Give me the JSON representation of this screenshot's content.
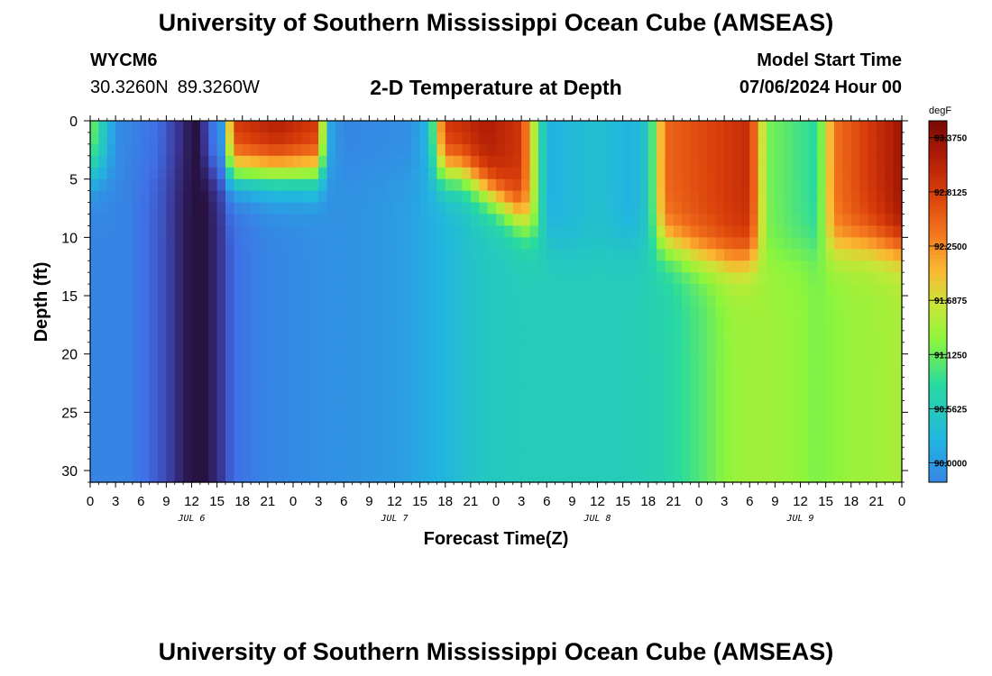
{
  "header": {
    "title": "University of Southern Mississippi Ocean Cube (AMSEAS)",
    "station_id": "WYCM6",
    "lat": "30.3260N",
    "lon": "89.3260W",
    "subtitle": "2-D Temperature at Depth",
    "model_start_label": "Model Start Time",
    "model_start_value": "07/06/2024 Hour 00"
  },
  "footer": {
    "title_repeat": "University of Southern Mississippi Ocean Cube (AMSEAS)"
  },
  "chart_data": {
    "type": "heatmap",
    "title": "2-D Temperature at Depth",
    "xlabel": "Forecast Time(Z)",
    "ylabel": "Depth (ft)",
    "x_range_hours": [
      0,
      96
    ],
    "x_ticks": [
      "0",
      "3",
      "6",
      "9",
      "12",
      "15",
      "18",
      "21",
      "0",
      "3",
      "6",
      "9",
      "12",
      "15",
      "18",
      "21",
      "0",
      "3",
      "6",
      "9",
      "12",
      "15",
      "18",
      "21",
      "0",
      "3",
      "6",
      "9",
      "12",
      "15",
      "18",
      "21",
      "0"
    ],
    "day_labels": [
      "JUL 6",
      "JUL 7",
      "JUL 8",
      "JUL 9"
    ],
    "y_range_ft": [
      0,
      31
    ],
    "y_ticks": [
      0,
      5,
      10,
      15,
      20,
      25,
      30
    ],
    "colorbar": {
      "unit": "degF",
      "range": [
        89.8,
        93.55
      ],
      "tick_values": [
        93.375,
        92.8125,
        92.25,
        91.6875,
        91.125,
        90.5625,
        90.0
      ],
      "tick_labels": [
        "93.3750",
        "92.8125",
        "92.2500",
        "91.6875",
        "91.1250",
        "90.5625",
        "90.0000"
      ]
    },
    "surface_temp_by_hour": [
      [
        0,
        91.3
      ],
      [
        1.5,
        90.6
      ],
      [
        3,
        89.9
      ],
      [
        8,
        89.6
      ],
      [
        11,
        89.2
      ],
      [
        12.5,
        88.9
      ],
      [
        14,
        89.5
      ],
      [
        15.5,
        90.0
      ],
      [
        17,
        92.9
      ],
      [
        22,
        93.2
      ],
      [
        27,
        92.9
      ],
      [
        28,
        90.2
      ],
      [
        30,
        89.8
      ],
      [
        38,
        89.9
      ],
      [
        40,
        90.3
      ],
      [
        42,
        92.9
      ],
      [
        47,
        93.2
      ],
      [
        51,
        92.9
      ],
      [
        54,
        90.2
      ],
      [
        60,
        90.4
      ],
      [
        64,
        90.2
      ],
      [
        66,
        90.5
      ],
      [
        68,
        92.5
      ],
      [
        78,
        93.0
      ],
      [
        80,
        91.2
      ],
      [
        86,
        90.8
      ],
      [
        88,
        92.4
      ],
      [
        96,
        93.3
      ]
    ],
    "deep_temp_by_hour": [
      [
        0,
        89.8
      ],
      [
        4,
        89.8
      ],
      [
        9,
        89.4
      ],
      [
        11,
        89.1
      ],
      [
        13,
        88.9
      ],
      [
        15,
        89.2
      ],
      [
        17,
        89.6
      ],
      [
        21,
        89.8
      ],
      [
        28,
        89.9
      ],
      [
        36,
        90.0
      ],
      [
        41,
        90.2
      ],
      [
        46,
        90.5
      ],
      [
        52,
        90.6
      ],
      [
        58,
        90.6
      ],
      [
        64,
        90.6
      ],
      [
        68,
        90.7
      ],
      [
        72,
        91.0
      ],
      [
        76,
        91.35
      ],
      [
        80,
        91.4
      ],
      [
        84,
        91.3
      ],
      [
        86,
        91.2
      ],
      [
        90,
        91.35
      ],
      [
        96,
        91.45
      ]
    ],
    "mixed_layer_depth_ft": [
      [
        0,
        4.4
      ],
      [
        40,
        4.4
      ],
      [
        44,
        4.4
      ],
      [
        47,
        6
      ],
      [
        52,
        9
      ],
      [
        56,
        11
      ],
      [
        60,
        11
      ],
      [
        64,
        10.5
      ],
      [
        68,
        10.5
      ],
      [
        72,
        11.5
      ],
      [
        76,
        12
      ],
      [
        80,
        11.5
      ],
      [
        84,
        11
      ],
      [
        88,
        10.8
      ],
      [
        92,
        10.5
      ],
      [
        96,
        11
      ]
    ]
  }
}
